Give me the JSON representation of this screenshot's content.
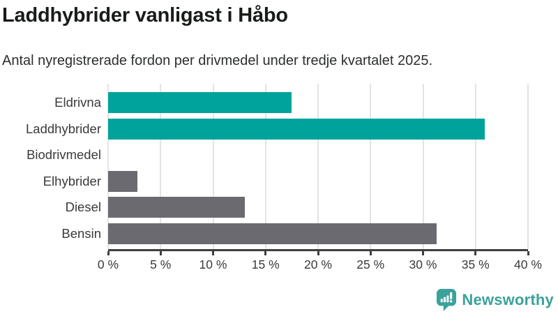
{
  "chart_data": {
    "type": "bar",
    "orientation": "horizontal",
    "title": "Laddhybrider vanligast i Håbo",
    "subtitle": "Antal nyregistrerade fordon per drivmedel under tredje kvartalet 2025.",
    "categories": [
      "Eldrivna",
      "Laddhybrider",
      "Biodrivmedel",
      "Elhybrider",
      "Diesel",
      "Bensin"
    ],
    "values": [
      17.5,
      35.9,
      0,
      2.8,
      13,
      31.3
    ],
    "unit": "%",
    "xlim": [
      0,
      40
    ],
    "x_ticks": [
      "0 %",
      "5 %",
      "10 %",
      "15 %",
      "20 %",
      "25 %",
      "30 %",
      "35 %",
      "40 %"
    ],
    "x_tick_values": [
      0,
      5,
      10,
      15,
      20,
      25,
      30,
      35,
      40
    ],
    "grid": true,
    "legend": false,
    "bar_colors": [
      "#00A39B",
      "#00A39B",
      "#6C6A71",
      "#6C6A71",
      "#6C6A71",
      "#6C6A71"
    ],
    "color_teal": "#00A39B",
    "color_gray": "#6C6A71",
    "gridline_color": "#e3e3e3",
    "axis_color": "#3f3f3f"
  },
  "footer": {
    "brand": "Newsworthy",
    "brand_color": "#3BA29B",
    "logo_icon": "newsworthy-speech-bubble-bar-chart-icon"
  }
}
